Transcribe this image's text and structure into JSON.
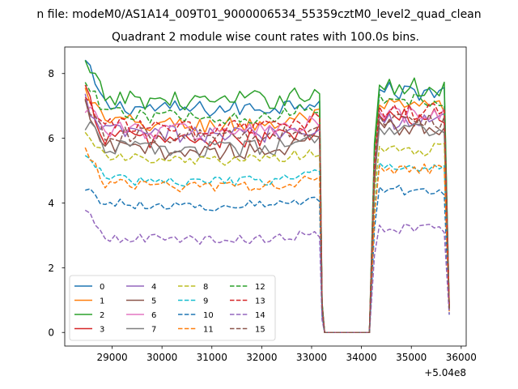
{
  "chart_data": {
    "type": "line",
    "suptitle": "n file: modeM0/AS1A14_009T01_9000006534_55359cztM0_level2_quad_clean",
    "title": "Quadrant 2 module wise count rates with 100.0s bins.",
    "xlabel": "",
    "ylabel": "",
    "x_offset_label": "+5.04e8",
    "xlim": [
      28050,
      36100
    ],
    "ylim": [
      -0.42,
      8.82
    ],
    "xticks": [
      29000,
      30000,
      31000,
      32000,
      33000,
      34000,
      35000,
      36000
    ],
    "xtick_labels": [
      "29000",
      "30000",
      "31000",
      "32000",
      "33000",
      "34000",
      "35000",
      "36000"
    ],
    "yticks": [
      0,
      2,
      4,
      6,
      8
    ],
    "ytick_labels": [
      "0",
      "2",
      "4",
      "6",
      "8"
    ],
    "grid": false,
    "legend_position": "lower-left",
    "legend_columns": 4,
    "segments": [
      {
        "start": 28460,
        "end": 33160,
        "bin": 100
      },
      {
        "start": 34160,
        "end": 35760,
        "bin": 100
      }
    ],
    "gap": {
      "x": [
        33260,
        34160
      ],
      "value": 0
    },
    "series": [
      {
        "name": "0",
        "color": "#1f77b4",
        "dash": "solid",
        "level": 7.05,
        "post_level": 7.45,
        "start": 8.35,
        "noise": 0.26,
        "end_value": 0.75
      },
      {
        "name": "1",
        "color": "#ff7f0e",
        "dash": "solid",
        "level": 6.55,
        "post_level": 6.95,
        "start": 7.45,
        "noise": 0.28,
        "end_value": 0.8
      },
      {
        "name": "2",
        "color": "#2ca02c",
        "dash": "solid",
        "level": 7.3,
        "post_level": 7.55,
        "start": 8.25,
        "noise": 0.3,
        "end_value": 0.8
      },
      {
        "name": "3",
        "color": "#d62728",
        "dash": "solid",
        "level": 6.1,
        "post_level": 6.6,
        "start": 7.45,
        "noise": 0.3,
        "end_value": 0.75
      },
      {
        "name": "4",
        "color": "#9467bd",
        "dash": "solid",
        "level": 6.25,
        "post_level": 6.55,
        "start": 7.15,
        "noise": 0.28,
        "end_value": 0.75
      },
      {
        "name": "5",
        "color": "#8c564b",
        "dash": "solid",
        "level": 5.75,
        "post_level": 6.4,
        "start": 6.95,
        "noise": 0.28,
        "end_value": 0.7
      },
      {
        "name": "6",
        "color": "#e377c2",
        "dash": "solid",
        "level": 6.35,
        "post_level": 6.7,
        "start": 7.05,
        "noise": 0.28,
        "end_value": 0.75
      },
      {
        "name": "7",
        "color": "#7f7f7f",
        "dash": "solid",
        "level": 5.8,
        "post_level": 6.2,
        "start": 6.45,
        "noise": 0.25,
        "end_value": 0.7
      },
      {
        "name": "8",
        "color": "#bcbd22",
        "dash": "dashed",
        "level": 5.45,
        "post_level": 5.65,
        "start": 6.3,
        "noise": 0.18,
        "end_value": 0.7
      },
      {
        "name": "9",
        "color": "#17becf",
        "dash": "dashed",
        "level": 4.8,
        "post_level": 5.15,
        "start": 5.55,
        "noise": 0.16,
        "end_value": 0.65
      },
      {
        "name": "10",
        "color": "#1f77b4",
        "dash": "dashed",
        "level": 4.05,
        "post_level": 4.4,
        "start": 4.45,
        "noise": 0.15,
        "end_value": 0.55
      },
      {
        "name": "11",
        "color": "#ff7f0e",
        "dash": "dashed",
        "level": 4.65,
        "post_level": 5.05,
        "start": 5.75,
        "noise": 0.16,
        "end_value": 0.65
      },
      {
        "name": "12",
        "color": "#2ca02c",
        "dash": "dashed",
        "level": 6.8,
        "post_level": 7.2,
        "start": 7.75,
        "noise": 0.22,
        "end_value": 0.75
      },
      {
        "name": "13",
        "color": "#d62728",
        "dash": "dashed",
        "level": 6.45,
        "post_level": 6.8,
        "start": 7.25,
        "noise": 0.24,
        "end_value": 0.75
      },
      {
        "name": "14",
        "color": "#9467bd",
        "dash": "dashed",
        "level": 3.0,
        "post_level": 3.2,
        "start": 3.75,
        "noise": 0.15,
        "end_value": 0.55
      },
      {
        "name": "15",
        "color": "#8c564b",
        "dash": "dashed",
        "level": 6.2,
        "post_level": 6.55,
        "start": 7.1,
        "noise": 0.24,
        "end_value": 0.7
      }
    ]
  }
}
